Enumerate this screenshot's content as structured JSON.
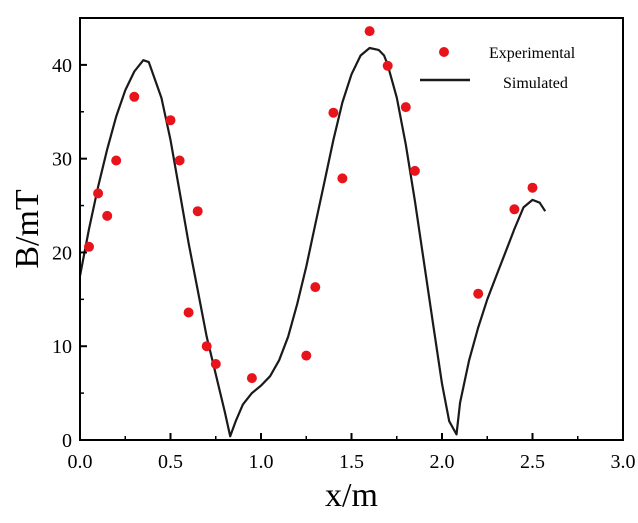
{
  "chart_data": {
    "type": "line",
    "title": "",
    "xlabel": "x/m",
    "ylabel": "B/mT",
    "xlim": [
      0.0,
      3.0
    ],
    "ylim": [
      0,
      45
    ],
    "xticks": [
      0.0,
      0.5,
      1.0,
      1.5,
      2.0,
      2.5,
      3.0
    ],
    "xtick_labels": [
      "0.0",
      "0.5",
      "1.0",
      "1.5",
      "2.0",
      "2.5",
      "3.0"
    ],
    "yticks": [
      0,
      10,
      20,
      30,
      40
    ],
    "ytick_labels": [
      "0",
      "10",
      "20",
      "30",
      "40"
    ],
    "grid": false,
    "legend_position": "top-right",
    "colors": {
      "experimental": "#e8141c",
      "simulated": "#1a1a1a"
    },
    "series": [
      {
        "name": "Experimental",
        "type": "scatter",
        "x": [
          0.05,
          0.1,
          0.15,
          0.2,
          0.3,
          0.5,
          0.55,
          0.6,
          0.65,
          0.7,
          0.75,
          0.95,
          1.25,
          1.3,
          1.4,
          1.45,
          1.6,
          1.7,
          1.8,
          1.85,
          2.2,
          2.4,
          2.5
        ],
        "y": [
          20.6,
          26.3,
          23.9,
          29.8,
          36.6,
          34.1,
          29.8,
          13.6,
          24.4,
          10.0,
          8.1,
          6.6,
          9.0,
          16.3,
          34.9,
          27.9,
          43.6,
          39.9,
          35.5,
          28.7,
          15.6,
          24.6,
          26.9
        ]
      },
      {
        "name": "Simulated",
        "type": "line",
        "x": [
          0.0,
          0.05,
          0.1,
          0.15,
          0.2,
          0.25,
          0.3,
          0.35,
          0.38,
          0.45,
          0.5,
          0.55,
          0.6,
          0.65,
          0.7,
          0.75,
          0.8,
          0.83,
          0.86,
          0.9,
          0.95,
          1.0,
          1.05,
          1.1,
          1.15,
          1.2,
          1.25,
          1.3,
          1.35,
          1.4,
          1.45,
          1.5,
          1.55,
          1.6,
          1.65,
          1.68,
          1.7,
          1.75,
          1.8,
          1.85,
          1.9,
          1.95,
          2.0,
          2.04,
          2.08,
          2.1,
          2.15,
          2.2,
          2.25,
          2.3,
          2.35,
          2.4,
          2.45,
          2.5,
          2.54,
          2.57
        ],
        "y": [
          17.5,
          22.5,
          27.0,
          31.0,
          34.5,
          37.3,
          39.3,
          40.5,
          40.3,
          36.5,
          32.0,
          26.5,
          21.0,
          16.0,
          11.0,
          7.0,
          3.0,
          0.4,
          2.0,
          3.8,
          5.0,
          5.8,
          6.8,
          8.5,
          11.0,
          14.5,
          18.5,
          23.0,
          27.5,
          32.0,
          36.0,
          39.0,
          41.0,
          41.8,
          41.6,
          41.0,
          40.0,
          36.5,
          31.5,
          25.5,
          19.0,
          12.5,
          6.0,
          2.0,
          0.6,
          4.0,
          8.5,
          12.0,
          15.0,
          17.5,
          20.0,
          22.5,
          24.8,
          25.6,
          25.3,
          24.4
        ]
      }
    ]
  }
}
